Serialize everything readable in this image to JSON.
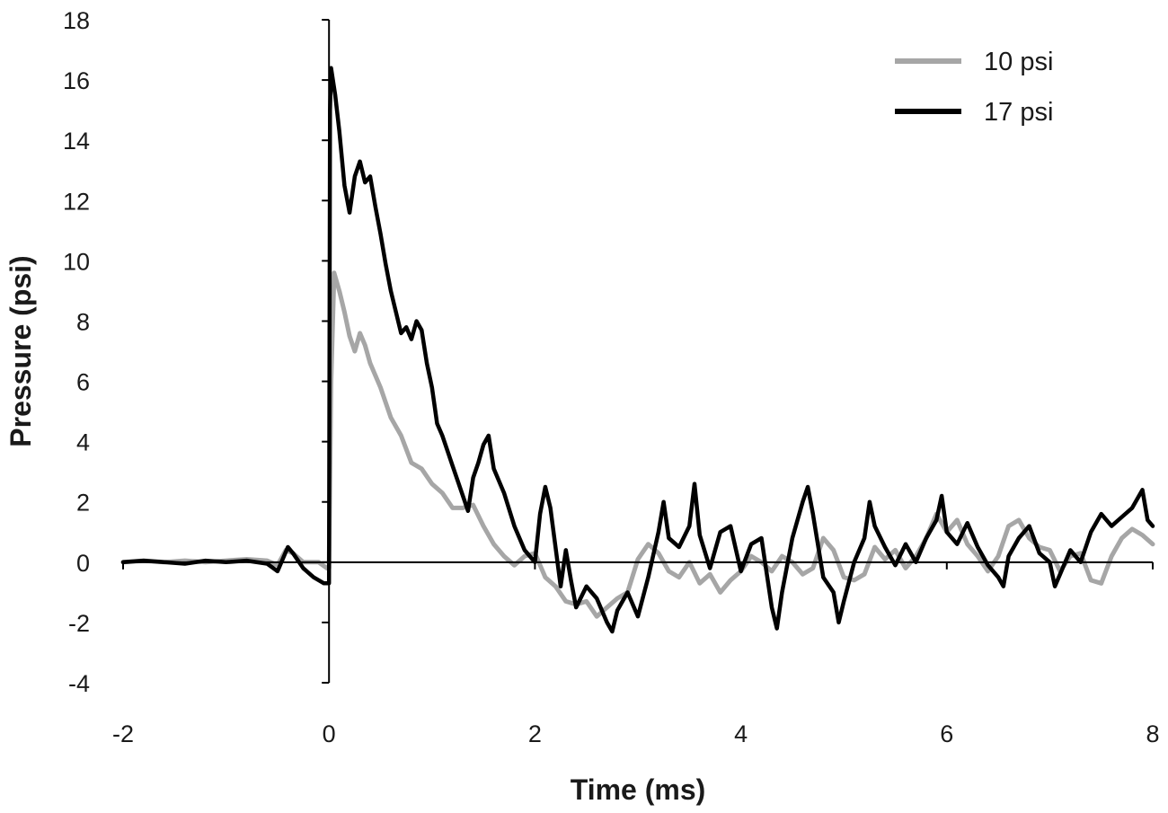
{
  "chart_data": {
    "type": "line",
    "xlabel": "Time (ms)",
    "ylabel": "Pressure (psi)",
    "xlim": [
      -2,
      8
    ],
    "ylim": [
      -4,
      18
    ],
    "x_ticks": [
      -2,
      0,
      2,
      4,
      6,
      8
    ],
    "y_ticks": [
      -4,
      -2,
      0,
      2,
      4,
      6,
      8,
      10,
      12,
      14,
      16,
      18
    ],
    "grid": false,
    "legend_position": "top-right",
    "series": [
      {
        "name": "10 psi",
        "color": "#a6a6a6",
        "points": [
          [
            -2.0,
            0.0
          ],
          [
            -1.8,
            0.05
          ],
          [
            -1.6,
            0.0
          ],
          [
            -1.4,
            0.05
          ],
          [
            -1.2,
            0.0
          ],
          [
            -1.0,
            0.05
          ],
          [
            -0.8,
            0.1
          ],
          [
            -0.6,
            0.05
          ],
          [
            -0.5,
            -0.1
          ],
          [
            -0.42,
            0.4
          ],
          [
            -0.35,
            0.3
          ],
          [
            -0.25,
            0.0
          ],
          [
            -0.1,
            0.0
          ],
          [
            -0.02,
            -0.2
          ],
          [
            0.0,
            -0.2
          ],
          [
            0.02,
            6.0
          ],
          [
            0.05,
            9.6
          ],
          [
            0.1,
            9.0
          ],
          [
            0.15,
            8.3
          ],
          [
            0.2,
            7.5
          ],
          [
            0.25,
            7.0
          ],
          [
            0.3,
            7.6
          ],
          [
            0.35,
            7.2
          ],
          [
            0.4,
            6.6
          ],
          [
            0.5,
            5.8
          ],
          [
            0.6,
            4.8
          ],
          [
            0.7,
            4.2
          ],
          [
            0.8,
            3.3
          ],
          [
            0.9,
            3.1
          ],
          [
            1.0,
            2.6
          ],
          [
            1.1,
            2.3
          ],
          [
            1.2,
            1.8
          ],
          [
            1.3,
            1.8
          ],
          [
            1.4,
            1.9
          ],
          [
            1.5,
            1.2
          ],
          [
            1.6,
            0.6
          ],
          [
            1.7,
            0.2
          ],
          [
            1.8,
            -0.1
          ],
          [
            1.9,
            0.2
          ],
          [
            2.0,
            0.3
          ],
          [
            2.1,
            -0.5
          ],
          [
            2.2,
            -0.8
          ],
          [
            2.3,
            -1.3
          ],
          [
            2.4,
            -1.4
          ],
          [
            2.5,
            -1.3
          ],
          [
            2.6,
            -1.8
          ],
          [
            2.7,
            -1.5
          ],
          [
            2.8,
            -1.2
          ],
          [
            2.9,
            -1.0
          ],
          [
            3.0,
            0.1
          ],
          [
            3.1,
            0.6
          ],
          [
            3.2,
            0.3
          ],
          [
            3.3,
            -0.3
          ],
          [
            3.4,
            -0.5
          ],
          [
            3.5,
            0.0
          ],
          [
            3.6,
            -0.7
          ],
          [
            3.7,
            -0.4
          ],
          [
            3.8,
            -1.0
          ],
          [
            3.9,
            -0.6
          ],
          [
            4.0,
            -0.3
          ],
          [
            4.1,
            0.2
          ],
          [
            4.2,
            0.0
          ],
          [
            4.3,
            -0.3
          ],
          [
            4.4,
            0.2
          ],
          [
            4.5,
            0.0
          ],
          [
            4.6,
            -0.4
          ],
          [
            4.7,
            -0.2
          ],
          [
            4.8,
            0.8
          ],
          [
            4.9,
            0.4
          ],
          [
            5.0,
            -0.5
          ],
          [
            5.1,
            -0.6
          ],
          [
            5.2,
            -0.4
          ],
          [
            5.3,
            0.5
          ],
          [
            5.4,
            0.1
          ],
          [
            5.5,
            0.4
          ],
          [
            5.6,
            -0.2
          ],
          [
            5.7,
            0.2
          ],
          [
            5.8,
            0.8
          ],
          [
            5.9,
            1.6
          ],
          [
            6.0,
            1.0
          ],
          [
            6.1,
            1.4
          ],
          [
            6.2,
            0.6
          ],
          [
            6.3,
            0.2
          ],
          [
            6.4,
            -0.3
          ],
          [
            6.5,
            0.2
          ],
          [
            6.6,
            1.2
          ],
          [
            6.7,
            1.4
          ],
          [
            6.8,
            0.8
          ],
          [
            6.9,
            0.5
          ],
          [
            7.0,
            0.4
          ],
          [
            7.1,
            -0.3
          ],
          [
            7.2,
            0.2
          ],
          [
            7.3,
            0.3
          ],
          [
            7.4,
            -0.6
          ],
          [
            7.5,
            -0.7
          ],
          [
            7.6,
            0.2
          ],
          [
            7.7,
            0.8
          ],
          [
            7.8,
            1.1
          ],
          [
            7.9,
            0.9
          ],
          [
            8.0,
            0.6
          ]
        ]
      },
      {
        "name": "17 psi",
        "color": "#000000",
        "points": [
          [
            -2.0,
            0.0
          ],
          [
            -1.8,
            0.05
          ],
          [
            -1.6,
            0.0
          ],
          [
            -1.4,
            -0.05
          ],
          [
            -1.2,
            0.05
          ],
          [
            -1.0,
            0.0
          ],
          [
            -0.8,
            0.05
          ],
          [
            -0.6,
            -0.05
          ],
          [
            -0.5,
            -0.3
          ],
          [
            -0.4,
            0.5
          ],
          [
            -0.35,
            0.3
          ],
          [
            -0.25,
            -0.2
          ],
          [
            -0.15,
            -0.5
          ],
          [
            -0.05,
            -0.7
          ],
          [
            -0.01,
            -0.7
          ],
          [
            0.0,
            -0.7
          ],
          [
            0.01,
            15.0
          ],
          [
            0.02,
            16.4
          ],
          [
            0.06,
            15.5
          ],
          [
            0.1,
            14.3
          ],
          [
            0.15,
            12.5
          ],
          [
            0.2,
            11.6
          ],
          [
            0.25,
            12.8
          ],
          [
            0.3,
            13.3
          ],
          [
            0.35,
            12.6
          ],
          [
            0.4,
            12.8
          ],
          [
            0.45,
            11.8
          ],
          [
            0.5,
            10.9
          ],
          [
            0.55,
            9.9
          ],
          [
            0.6,
            9.0
          ],
          [
            0.65,
            8.3
          ],
          [
            0.7,
            7.6
          ],
          [
            0.75,
            7.8
          ],
          [
            0.8,
            7.4
          ],
          [
            0.85,
            8.0
          ],
          [
            0.9,
            7.7
          ],
          [
            0.95,
            6.6
          ],
          [
            1.0,
            5.8
          ],
          [
            1.05,
            4.6
          ],
          [
            1.1,
            4.2
          ],
          [
            1.2,
            3.2
          ],
          [
            1.3,
            2.2
          ],
          [
            1.35,
            1.7
          ],
          [
            1.4,
            2.8
          ],
          [
            1.45,
            3.3
          ],
          [
            1.5,
            3.9
          ],
          [
            1.55,
            4.2
          ],
          [
            1.6,
            3.1
          ],
          [
            1.7,
            2.3
          ],
          [
            1.8,
            1.2
          ],
          [
            1.9,
            0.4
          ],
          [
            2.0,
            0.0
          ],
          [
            2.05,
            1.6
          ],
          [
            2.1,
            2.5
          ],
          [
            2.15,
            1.8
          ],
          [
            2.2,
            0.5
          ],
          [
            2.25,
            -0.8
          ],
          [
            2.3,
            0.4
          ],
          [
            2.35,
            -0.6
          ],
          [
            2.4,
            -1.5
          ],
          [
            2.5,
            -0.8
          ],
          [
            2.6,
            -1.2
          ],
          [
            2.7,
            -2.0
          ],
          [
            2.75,
            -2.3
          ],
          [
            2.8,
            -1.6
          ],
          [
            2.9,
            -1.0
          ],
          [
            3.0,
            -1.8
          ],
          [
            3.1,
            -0.5
          ],
          [
            3.2,
            1.0
          ],
          [
            3.25,
            2.0
          ],
          [
            3.3,
            0.8
          ],
          [
            3.4,
            0.5
          ],
          [
            3.5,
            1.2
          ],
          [
            3.55,
            2.6
          ],
          [
            3.6,
            0.9
          ],
          [
            3.7,
            -0.2
          ],
          [
            3.8,
            1.0
          ],
          [
            3.9,
            1.2
          ],
          [
            4.0,
            -0.3
          ],
          [
            4.1,
            0.6
          ],
          [
            4.2,
            0.8
          ],
          [
            4.3,
            -1.5
          ],
          [
            4.35,
            -2.2
          ],
          [
            4.4,
            -1.0
          ],
          [
            4.5,
            0.8
          ],
          [
            4.6,
            2.0
          ],
          [
            4.65,
            2.5
          ],
          [
            4.7,
            1.6
          ],
          [
            4.8,
            -0.5
          ],
          [
            4.9,
            -1.0
          ],
          [
            4.95,
            -2.0
          ],
          [
            5.0,
            -1.3
          ],
          [
            5.1,
            0.0
          ],
          [
            5.2,
            0.8
          ],
          [
            5.25,
            2.0
          ],
          [
            5.3,
            1.2
          ],
          [
            5.4,
            0.5
          ],
          [
            5.5,
            -0.1
          ],
          [
            5.6,
            0.6
          ],
          [
            5.7,
            0.0
          ],
          [
            5.8,
            0.8
          ],
          [
            5.9,
            1.4
          ],
          [
            5.95,
            2.2
          ],
          [
            6.0,
            1.0
          ],
          [
            6.1,
            0.6
          ],
          [
            6.2,
            1.3
          ],
          [
            6.3,
            0.5
          ],
          [
            6.4,
            -0.1
          ],
          [
            6.5,
            -0.5
          ],
          [
            6.55,
            -0.8
          ],
          [
            6.6,
            0.2
          ],
          [
            6.7,
            0.8
          ],
          [
            6.8,
            1.2
          ],
          [
            6.9,
            0.3
          ],
          [
            7.0,
            0.0
          ],
          [
            7.05,
            -0.8
          ],
          [
            7.1,
            -0.4
          ],
          [
            7.2,
            0.4
          ],
          [
            7.3,
            0.0
          ],
          [
            7.4,
            1.0
          ],
          [
            7.5,
            1.6
          ],
          [
            7.6,
            1.2
          ],
          [
            7.7,
            1.5
          ],
          [
            7.8,
            1.8
          ],
          [
            7.9,
            2.4
          ],
          [
            7.95,
            1.4
          ],
          [
            8.0,
            1.2
          ]
        ]
      }
    ]
  }
}
